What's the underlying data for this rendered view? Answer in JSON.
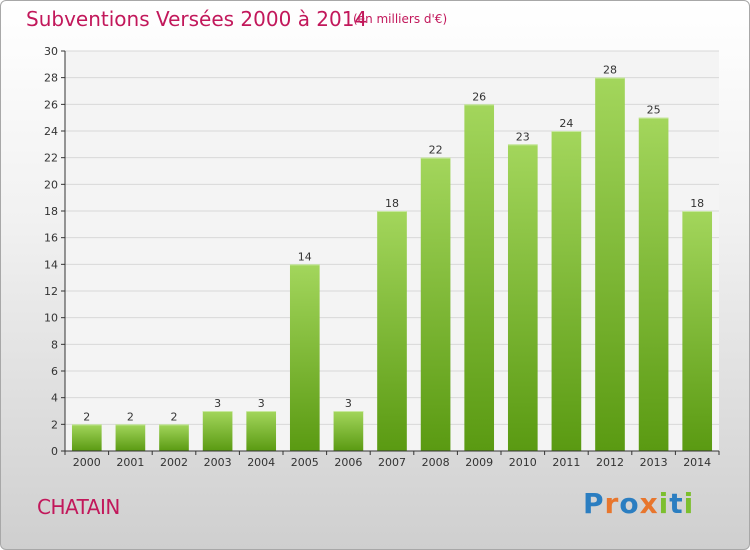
{
  "chart_data": {
    "type": "bar",
    "title": "Subventions Versées 2000 à 2014",
    "subtitle": "(en milliers d'€)",
    "categories": [
      "2000",
      "2001",
      "2002",
      "2003",
      "2004",
      "2005",
      "2006",
      "2007",
      "2008",
      "2009",
      "2010",
      "2011",
      "2012",
      "2013",
      "2014"
    ],
    "values": [
      2,
      2,
      2,
      3,
      3,
      14,
      3,
      18,
      22,
      26,
      23,
      24,
      28,
      25,
      18
    ],
    "ylim": [
      0,
      30
    ],
    "yticks": [
      0,
      2,
      4,
      6,
      8,
      10,
      12,
      14,
      16,
      18,
      20,
      22,
      24,
      26,
      28,
      30
    ],
    "grid": true,
    "bar_color": "#7cbf2e",
    "bar_color_light": "#a3d65c",
    "bar_color_dark": "#5a9a12",
    "data_labels": true
  },
  "footer": {
    "commune": "CHATAIN",
    "brand_letters": [
      "P",
      "r",
      "o",
      "x",
      "i",
      "t",
      "i"
    ],
    "brand_colors": [
      "#2b7ec1",
      "#e8762d",
      "#2b7ec1",
      "#e8762d",
      "#7cbf2e",
      "#2b7ec1",
      "#7cbf2e"
    ]
  },
  "colors": {
    "title": "#c2185b",
    "axis": "#333333",
    "grid": "#d8d8d8"
  }
}
